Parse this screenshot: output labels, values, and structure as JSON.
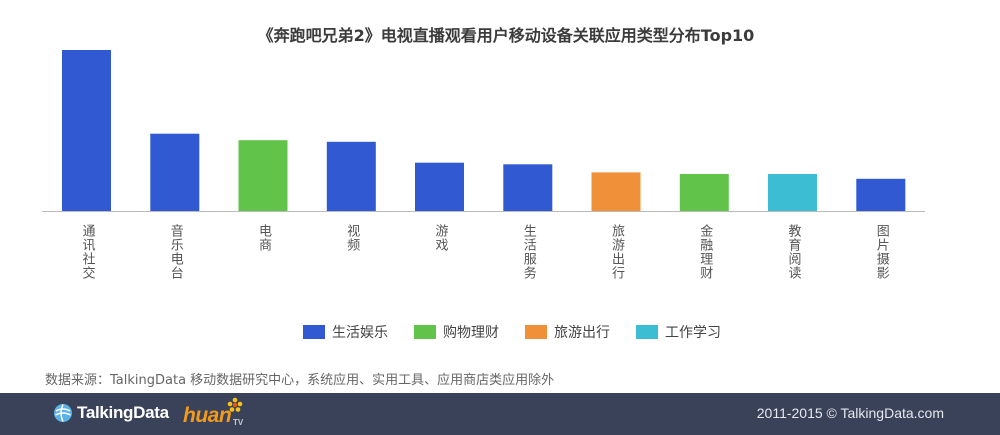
{
  "chart_data": {
    "type": "bar",
    "title": "《奔跑吧兄弟2》电视直播观看用户移动设备关联应用类型分布Top10",
    "xlabel": "",
    "ylabel": "",
    "categories": [
      "通讯社交",
      "音乐电台",
      "电商",
      "视频",
      "游戏",
      "生活服务",
      "旅游出行",
      "金融理财",
      "教育阅读",
      "图片摄影"
    ],
    "values": [
      100,
      48,
      44,
      43,
      30,
      29,
      24,
      23,
      23,
      20
    ],
    "category_groups": [
      "生活娱乐",
      "生活娱乐",
      "购物理财",
      "生活娱乐",
      "生活娱乐",
      "生活娱乐",
      "旅游出行",
      "购物理财",
      "工作学习",
      "生活娱乐"
    ],
    "legend": [
      {
        "name": "生活娱乐",
        "color": "#3159d2"
      },
      {
        "name": "购物理财",
        "color": "#62c34b"
      },
      {
        "name": "旅游出行",
        "color": "#f0913a"
      },
      {
        "name": "工作学习",
        "color": "#3dbdd3"
      }
    ],
    "legend_position": "bottom",
    "ylim": [
      0,
      100
    ],
    "grid": false
  },
  "source_note": "数据来源：TalkingData 移动数据研究中心，系统应用、实用工具、应用商店类应用除外",
  "footer": {
    "logo_text": "TalkingData",
    "partner_logo_text": "huan",
    "partner_logo_suffix": "TV",
    "copyright": "2011-2015 © TalkingData.com"
  },
  "colors": {
    "footer_background": "#3a4259",
    "axis_line": "#bbbbbb"
  }
}
